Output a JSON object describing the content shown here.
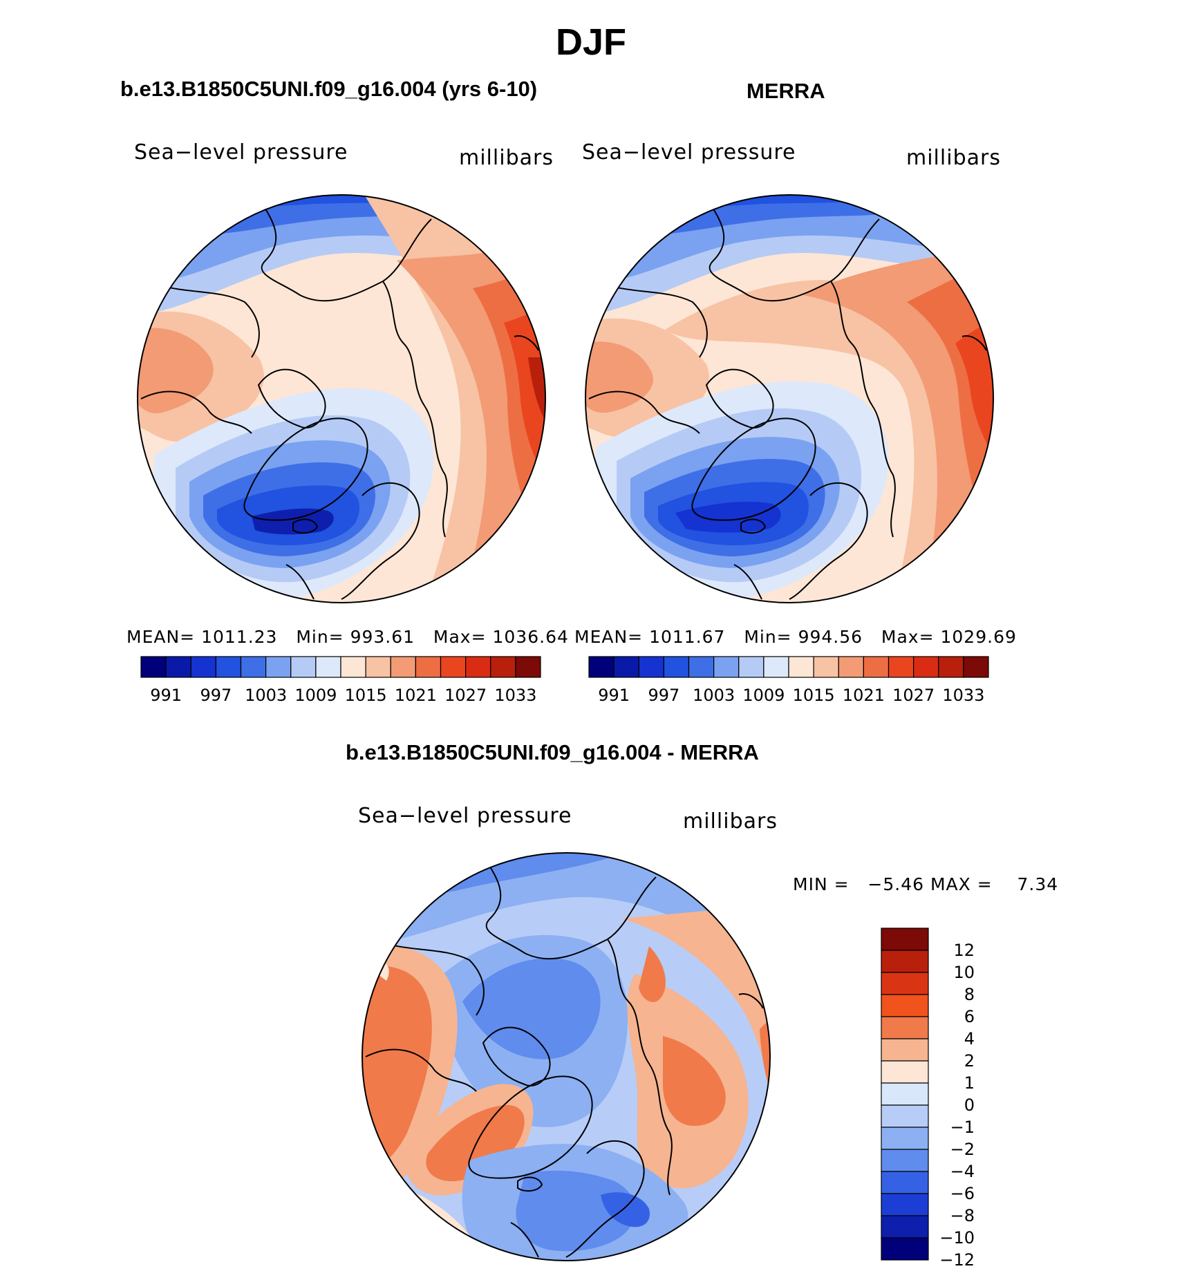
{
  "figure": {
    "title": "DJF"
  },
  "panels": [
    {
      "id": "model",
      "header": "b.e13.B1850C5UNI.f09_g16.004 (yrs 6-10)",
      "left_label": "Sea−level pressure",
      "right_label": "millibars",
      "stats": {
        "mean_label": "MEAN=",
        "mean": "1011.23",
        "min_label": "Min=",
        "min": "993.61",
        "max_label": "Max=",
        "max": "1036.64"
      }
    },
    {
      "id": "merra",
      "header": "MERRA",
      "left_label": "Sea−level pressure",
      "right_label": "millibars",
      "stats": {
        "mean_label": "MEAN=",
        "mean": "1011.67",
        "min_label": "Min=",
        "min": "994.56",
        "max_label": "Max=",
        "max": "1029.69"
      }
    },
    {
      "id": "diff",
      "header": "b.e13.B1850C5UNI.f09_g16.004 - MERRA",
      "left_label": "Sea−level pressure",
      "right_label": "millibars",
      "stats": {
        "min_label": "MIN =",
        "min": "−5.46",
        "max_label": "MAX =",
        "max": "7.34"
      }
    }
  ],
  "colorbars": {
    "abs": {
      "colors": [
        "#00007a",
        "#0a1aa8",
        "#1433d1",
        "#2152e0",
        "#3f6fe6",
        "#7aa2f0",
        "#b5cbf6",
        "#dde8fb",
        "#fde6d6",
        "#f8c2a4",
        "#f29b74",
        "#ee6e44",
        "#e9461f",
        "#d92c12",
        "#b8200c",
        "#7c0a06"
      ],
      "tick_labels": [
        "991",
        "997",
        "1003",
        "1009",
        "1015",
        "1021",
        "1027",
        "1033"
      ]
    },
    "diff": {
      "colors": [
        "#7c0a06",
        "#b8200c",
        "#d93515",
        "#f1531c",
        "#f07a4a",
        "#f6b491",
        "#fde6d6",
        "#d9e7fb",
        "#b7cdf7",
        "#8cb0f2",
        "#5f8ced",
        "#3562e4",
        "#1c3ed5",
        "#0e1fae",
        "#00007a"
      ],
      "tick_labels": [
        "12",
        "10",
        "8",
        "6",
        "4",
        "2",
        "1",
        "0",
        "−1",
        "−2",
        "−4",
        "−6",
        "−8",
        "−10",
        "−12"
      ]
    }
  },
  "map_colors": {
    "deep_blue": "#0e1fae",
    "blue": "#2152e0",
    "mid_blue": "#3f6fe6",
    "light_blue": "#7aa2f0",
    "pale_blue": "#b5cbf6",
    "very_pale_blue": "#dde8fb",
    "cream": "#fde6d6",
    "peach": "#f8c2a4",
    "salmon": "#f29b74",
    "orange": "#ee6e44",
    "red_orange": "#e9461f",
    "dark_red": "#b8200c"
  }
}
